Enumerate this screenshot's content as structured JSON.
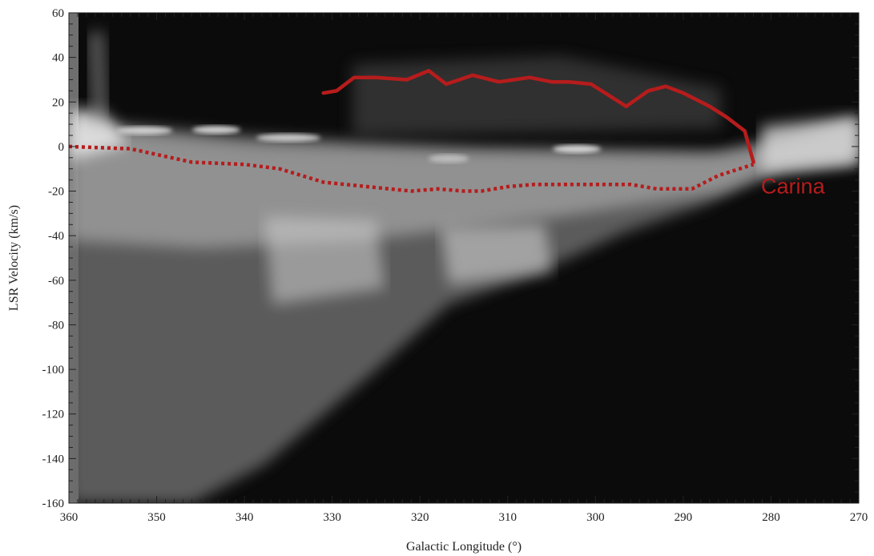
{
  "chart_data": {
    "type": "line",
    "xlabel": "Galactic Longitude (°)",
    "ylabel": "LSR Velocity (km/s)",
    "xlim": [
      360,
      270
    ],
    "ylim": [
      -160,
      60
    ],
    "x_ticks": [
      360,
      350,
      340,
      330,
      320,
      310,
      300,
      290,
      280,
      270
    ],
    "y_ticks": [
      60,
      40,
      20,
      0,
      -20,
      -40,
      -60,
      -80,
      -100,
      -120,
      -140,
      -160
    ],
    "background": "grayscale longitude-velocity intensity map",
    "series": [
      {
        "style": "solid",
        "color": "#b71c1c",
        "x": [
          331,
          329.5,
          327.5,
          325,
          321.5,
          319,
          317,
          314,
          311,
          307.5,
          305,
          303,
          300.5,
          296.5,
          294,
          292,
          290,
          287,
          285,
          283,
          282
        ],
        "y": [
          24,
          25,
          31,
          31,
          30,
          34,
          28,
          32,
          29,
          31,
          29,
          29,
          28,
          18,
          25,
          27,
          24,
          18,
          13,
          7,
          -7
        ]
      },
      {
        "style": "dotted",
        "color": "#b71c1c",
        "x": [
          360,
          353,
          346,
          340,
          336,
          331,
          326,
          321,
          318,
          315,
          313,
          310,
          307,
          304,
          300,
          296,
          293,
          289,
          286,
          282
        ],
        "y": [
          0,
          -1,
          -7,
          -8,
          -10,
          -16,
          -18,
          -20,
          -19,
          -20,
          -20,
          -18,
          -17,
          -17,
          -17,
          -17,
          -19,
          -19,
          -13,
          -8
        ]
      }
    ],
    "annotations": [
      {
        "text": "Carina",
        "x": 277.5,
        "y": -21,
        "color": "#b71c1c"
      }
    ]
  }
}
